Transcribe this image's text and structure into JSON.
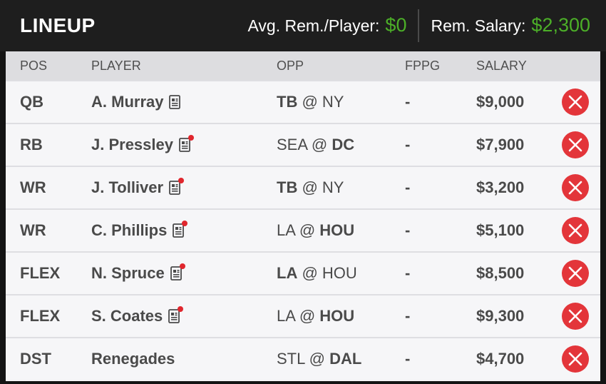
{
  "header": {
    "title": "LINEUP",
    "avg_label": "Avg. Rem./Player:",
    "avg_value": "$0",
    "rem_label": "Rem. Salary:",
    "rem_value": "$2,300",
    "accent_color": "#4caf28"
  },
  "columns": {
    "pos": "POS",
    "player": "PLAYER",
    "opp": "OPP",
    "fppg": "FPPG",
    "salary": "SALARY"
  },
  "rows": [
    {
      "pos": "QB",
      "player": "A. Murray",
      "news": true,
      "news_alert": false,
      "opp_away": "TB",
      "opp_sep": " @ ",
      "opp_home": "NY",
      "bold": "away",
      "fppg": "-",
      "salary": "$9,000"
    },
    {
      "pos": "RB",
      "player": "J. Pressley",
      "news": true,
      "news_alert": true,
      "opp_away": "SEA",
      "opp_sep": " @ ",
      "opp_home": "DC",
      "bold": "home",
      "fppg": "-",
      "salary": "$7,900"
    },
    {
      "pos": "WR",
      "player": "J. Tolliver",
      "news": true,
      "news_alert": true,
      "opp_away": "TB",
      "opp_sep": " @ ",
      "opp_home": "NY",
      "bold": "away",
      "fppg": "-",
      "salary": "$3,200"
    },
    {
      "pos": "WR",
      "player": "C. Phillips",
      "news": true,
      "news_alert": true,
      "opp_away": "LA",
      "opp_sep": " @ ",
      "opp_home": "HOU",
      "bold": "home",
      "fppg": "-",
      "salary": "$5,100"
    },
    {
      "pos": "FLEX",
      "player": "N. Spruce",
      "news": true,
      "news_alert": true,
      "opp_away": "LA",
      "opp_sep": " @ ",
      "opp_home": "HOU",
      "bold": "away",
      "fppg": "-",
      "salary": "$8,500"
    },
    {
      "pos": "FLEX",
      "player": "S. Coates",
      "news": true,
      "news_alert": true,
      "opp_away": "LA",
      "opp_sep": " @ ",
      "opp_home": "HOU",
      "bold": "home",
      "fppg": "-",
      "salary": "$9,300"
    },
    {
      "pos": "DST",
      "player": "Renegades",
      "news": false,
      "news_alert": false,
      "opp_away": "STL",
      "opp_sep": " @ ",
      "opp_home": "DAL",
      "bold": "home",
      "fppg": "-",
      "salary": "$4,700"
    }
  ],
  "icons": {
    "news": "player-news-icon",
    "alert": "news-alert-dot",
    "remove": "remove-player-icon"
  }
}
